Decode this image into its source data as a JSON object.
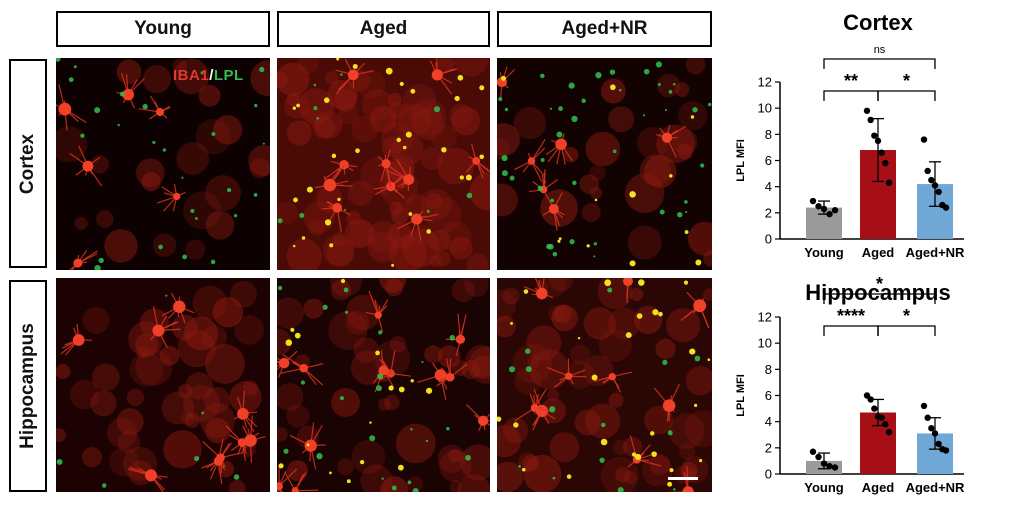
{
  "figure": {
    "columns": [
      "Young",
      "Aged",
      "Aged+NR"
    ],
    "rows": [
      "Cortex",
      "Hippocampus"
    ],
    "stain": {
      "part1": "IBA1",
      "slash": "/",
      "part2": "LPL",
      "color1": "#e03a2f",
      "color2": "#2ebd4e"
    }
  },
  "chart_data": [
    {
      "type": "bar",
      "title": "Cortex",
      "ylabel": "LPL MFI",
      "categories": [
        "Young",
        "Aged",
        "Aged+NR"
      ],
      "values": [
        2.4,
        6.8,
        4.2
      ],
      "errors": [
        0.5,
        2.4,
        1.7
      ],
      "points": [
        [
          2.9,
          2.5,
          2.3,
          1.9,
          2.2
        ],
        [
          9.8,
          9.1,
          7.9,
          7.5,
          6.6,
          5.8,
          4.3
        ],
        [
          7.6,
          5.2,
          4.5,
          4.1,
          3.6,
          2.6,
          2.4
        ]
      ],
      "colors": [
        "#9b9b9b",
        "#a50f15",
        "#6fa8d6"
      ],
      "ylim": [
        0,
        12
      ],
      "yticks": [
        "0",
        "2",
        "4",
        "6",
        "8",
        "10",
        "12"
      ],
      "significance": [
        {
          "from": 0,
          "to": 2,
          "label": "ns",
          "level": 2
        },
        {
          "from": 0,
          "to": 1,
          "label": "**",
          "level": 1
        },
        {
          "from": 1,
          "to": 2,
          "label": "*",
          "level": 1
        }
      ]
    },
    {
      "type": "bar",
      "title": "Hippocampus",
      "ylabel": "LPL MFI",
      "categories": [
        "Young",
        "Aged",
        "Aged+NR"
      ],
      "values": [
        1.0,
        4.7,
        3.1
      ],
      "errors": [
        0.6,
        1.0,
        1.2
      ],
      "points": [
        [
          1.7,
          1.3,
          0.8,
          0.6,
          0.5
        ],
        [
          6.0,
          5.7,
          5.0,
          4.4,
          4.3,
          3.8,
          3.2
        ],
        [
          5.2,
          4.3,
          3.5,
          3.1,
          2.3,
          1.9,
          1.8
        ]
      ],
      "colors": [
        "#9b9b9b",
        "#a50f15",
        "#6fa8d6"
      ],
      "ylim": [
        0,
        12
      ],
      "yticks": [
        "0",
        "2",
        "4",
        "6",
        "8",
        "10",
        "12"
      ],
      "significance": [
        {
          "from": 0,
          "to": 2,
          "label": "*",
          "level": 2
        },
        {
          "from": 0,
          "to": 1,
          "label": "****",
          "level": 1
        },
        {
          "from": 1,
          "to": 2,
          "label": "*",
          "level": 1
        }
      ]
    }
  ]
}
